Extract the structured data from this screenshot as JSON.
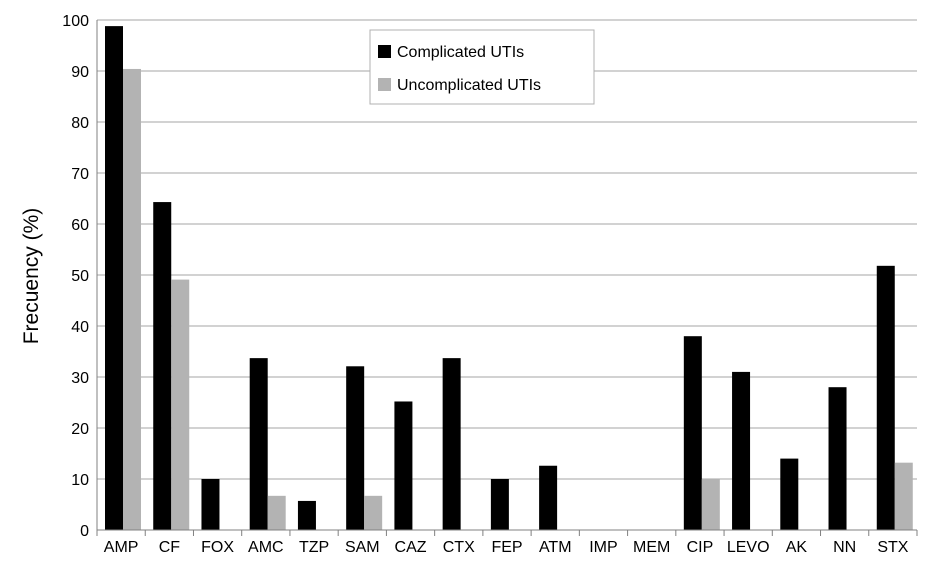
{
  "chart_data": {
    "type": "bar",
    "title": "",
    "xlabel": "",
    "ylabel": "Frecuency (%)",
    "ylim": [
      0,
      100
    ],
    "yticks": [
      0,
      10,
      20,
      30,
      40,
      50,
      60,
      70,
      80,
      90,
      100
    ],
    "grid": true,
    "legend_position": "top-center",
    "categories": [
      "AMP",
      "CF",
      "FOX",
      "AMC",
      "TZP",
      "SAM",
      "CAZ",
      "CTX",
      "FEP",
      "ATM",
      "IMP",
      "MEM",
      "CIP",
      "LEVO",
      "AK",
      "NN",
      "STX"
    ],
    "series": [
      {
        "name": "Complicated UTIs",
        "color": "#000000",
        "values": [
          98.8,
          64.3,
          10.0,
          33.7,
          5.7,
          32.1,
          25.2,
          33.7,
          10.0,
          12.6,
          0,
          0,
          38.0,
          31.0,
          14.0,
          28.0,
          51.8
        ]
      },
      {
        "name": "Uncomplicated UTIs",
        "color": "#b3b3b3",
        "values": [
          90.4,
          49.1,
          0,
          6.7,
          0,
          6.7,
          0,
          0,
          0,
          0,
          0,
          0,
          10.0,
          0,
          0,
          0,
          13.2
        ]
      }
    ]
  }
}
